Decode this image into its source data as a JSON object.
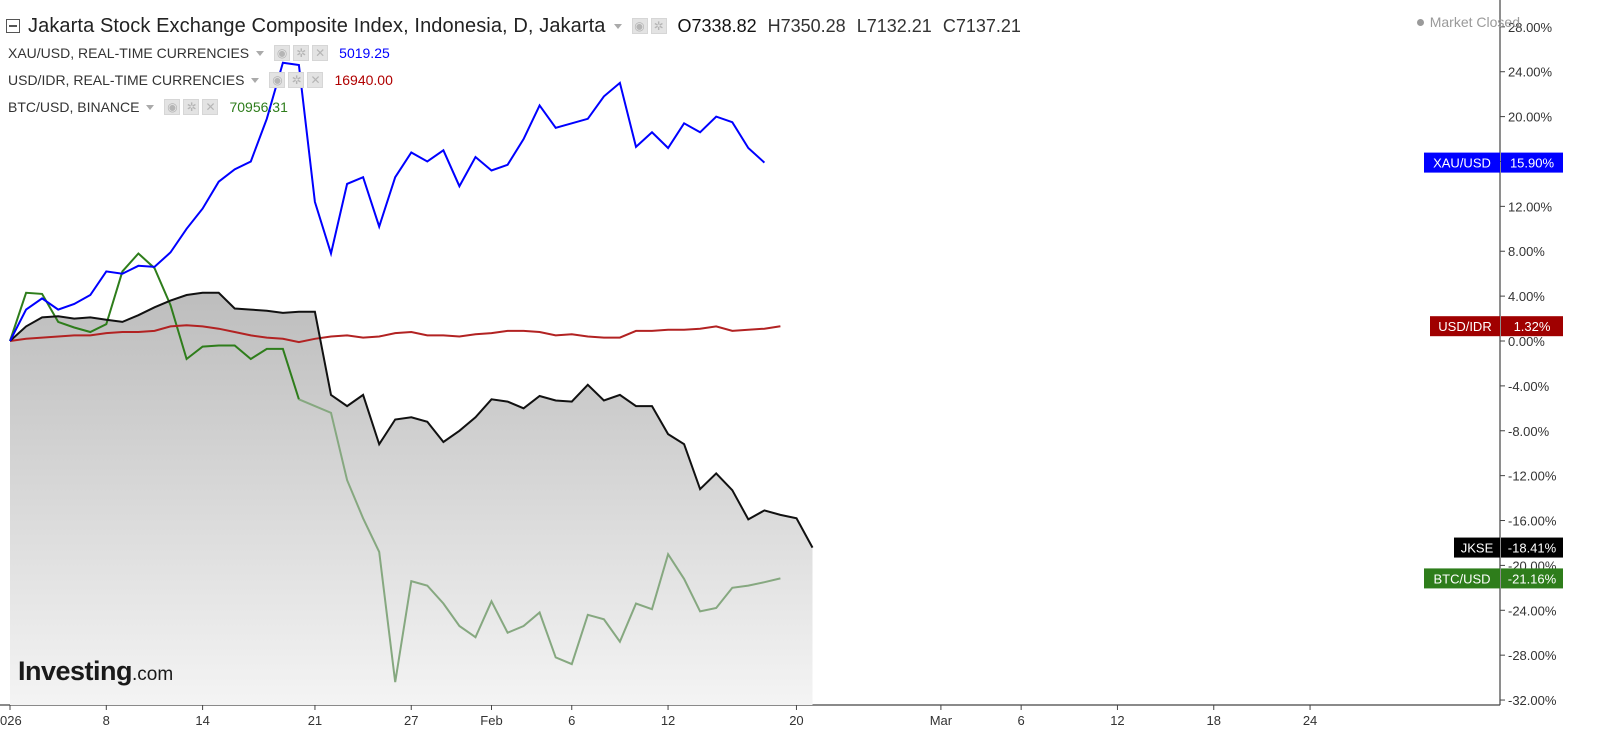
{
  "header": {
    "title": "Jakarta Stock Exchange Composite Index, Indonesia, D, Jakarta",
    "ohlc": [
      {
        "key": "O",
        "value": "7338.82"
      },
      {
        "key": "H",
        "value": "7350.28"
      },
      {
        "key": "L",
        "value": "7132.21"
      },
      {
        "key": "C",
        "value": "7137.21"
      }
    ],
    "market_status": "Market Closed"
  },
  "legend": [
    {
      "label": "XAU/USD, REAL-TIME CURRENCIES",
      "value": "5019.25",
      "color": "#0000ff"
    },
    {
      "label": "USD/IDR, REAL-TIME CURRENCIES",
      "value": "16940.00",
      "color": "#b00000"
    },
    {
      "label": "BTC/USD, BINANCE",
      "value": "70956.31",
      "color": "#2e7d1b"
    }
  ],
  "logo": {
    "brand": "Investing",
    "suffix": ".com"
  },
  "icons": [
    "collapse-icon",
    "eye-icon",
    "gear-icon",
    "close-icon",
    "chevron-down-icon"
  ],
  "chart_data": {
    "type": "line",
    "y_unit": "%",
    "ylim": [
      -34,
      30
    ],
    "y_ticks": [
      28,
      24,
      20,
      16,
      12,
      8,
      4,
      0,
      -4,
      -8,
      -12,
      -16,
      -20,
      -24,
      -28,
      -32
    ],
    "y_tick_labels": [
      "28.00%",
      "24.00%",
      "20.00%",
      "16.00%",
      "12.00%",
      "8.00%",
      "4.00%",
      "0.00%",
      "-4.00%",
      "-8.00%",
      "-12.00%",
      "-16.00%",
      "-20.00%",
      "-24.00%",
      "-28.00%",
      "-32.00%"
    ],
    "x_ticks": [
      {
        "label": "026",
        "day": 0
      },
      {
        "label": "8",
        "day": 6
      },
      {
        "label": "14",
        "day": 12
      },
      {
        "label": "21",
        "day": 19
      },
      {
        "label": "27",
        "day": 25
      },
      {
        "label": "Feb",
        "day": 30
      },
      {
        "label": "6",
        "day": 35
      },
      {
        "label": "12",
        "day": 41
      },
      {
        "label": "20",
        "day": 49
      },
      {
        "label": "Mar",
        "day": 58
      },
      {
        "label": "6",
        "day": 63
      },
      {
        "label": "12",
        "day": 69
      },
      {
        "label": "18",
        "day": 75
      },
      {
        "label": "24",
        "day": 81
      }
    ],
    "xlim": [
      0,
      90
    ],
    "grid": false,
    "series": [
      {
        "name": "JKSE",
        "color": "#111111",
        "area": true,
        "last_label": "-18.41%",
        "points": [
          [
            0,
            0
          ],
          [
            1,
            1.3
          ],
          [
            2,
            2.1
          ],
          [
            3,
            2.2
          ],
          [
            4,
            2.0
          ],
          [
            5,
            2.1
          ],
          [
            6,
            1.9
          ],
          [
            7,
            1.7
          ],
          [
            8,
            2.3
          ],
          [
            9,
            3.0
          ],
          [
            10,
            3.6
          ],
          [
            11,
            4.1
          ],
          [
            12,
            4.3
          ],
          [
            13,
            4.3
          ],
          [
            14,
            2.9
          ],
          [
            15,
            2.8
          ],
          [
            16,
            2.7
          ],
          [
            17,
            2.5
          ],
          [
            18,
            2.6
          ],
          [
            19,
            2.6
          ],
          [
            20,
            -4.8
          ],
          [
            21,
            -5.8
          ],
          [
            22,
            -4.8
          ],
          [
            23,
            -9.2
          ],
          [
            24,
            -7.0
          ],
          [
            25,
            -6.8
          ],
          [
            26,
            -7.2
          ],
          [
            27,
            -9.0
          ],
          [
            28,
            -8.0
          ],
          [
            29,
            -6.8
          ],
          [
            30,
            -5.2
          ],
          [
            31,
            -5.4
          ],
          [
            32,
            -6.0
          ],
          [
            33,
            -4.9
          ],
          [
            34,
            -5.3
          ],
          [
            35,
            -5.4
          ],
          [
            36,
            -3.9
          ],
          [
            37,
            -5.3
          ],
          [
            38,
            -4.8
          ],
          [
            39,
            -5.8
          ],
          [
            40,
            -5.8
          ],
          [
            41,
            -8.3
          ],
          [
            42,
            -9.2
          ],
          [
            43,
            -13.2
          ],
          [
            44,
            -11.8
          ],
          [
            45,
            -13.3
          ],
          [
            46,
            -15.9
          ],
          [
            47,
            -15.1
          ],
          [
            48,
            -15.5
          ],
          [
            49,
            -15.8
          ],
          [
            50,
            -18.41
          ]
        ]
      },
      {
        "name": "XAU/USD",
        "color": "#0000ff",
        "last_label": "15.90%",
        "points": [
          [
            0,
            0
          ],
          [
            1,
            2.8
          ],
          [
            2,
            3.8
          ],
          [
            3,
            2.8
          ],
          [
            4,
            3.3
          ],
          [
            5,
            4.1
          ],
          [
            6,
            6.2
          ],
          [
            7,
            6.0
          ],
          [
            8,
            6.7
          ],
          [
            9,
            6.6
          ],
          [
            10,
            7.9
          ],
          [
            11,
            10.0
          ],
          [
            12,
            11.8
          ],
          [
            13,
            14.2
          ],
          [
            14,
            15.3
          ],
          [
            15,
            16.0
          ],
          [
            16,
            19.8
          ],
          [
            17,
            24.8
          ],
          [
            18,
            24.6
          ],
          [
            19,
            12.4
          ],
          [
            20,
            7.8
          ],
          [
            21,
            14.0
          ],
          [
            22,
            14.6
          ],
          [
            23,
            10.2
          ],
          [
            24,
            14.6
          ],
          [
            25,
            16.8
          ],
          [
            26,
            16.0
          ],
          [
            27,
            17.0
          ],
          [
            28,
            13.8
          ],
          [
            29,
            16.4
          ],
          [
            30,
            15.2
          ],
          [
            31,
            15.7
          ],
          [
            32,
            18.0
          ],
          [
            33,
            21.0
          ],
          [
            34,
            19.0
          ],
          [
            35,
            19.4
          ],
          [
            36,
            19.8
          ],
          [
            37,
            21.8
          ],
          [
            38,
            23.0
          ],
          [
            39,
            17.3
          ],
          [
            40,
            18.6
          ],
          [
            41,
            17.2
          ],
          [
            42,
            19.4
          ],
          [
            43,
            18.6
          ],
          [
            44,
            20.0
          ],
          [
            45,
            19.5
          ],
          [
            46,
            17.2
          ],
          [
            47,
            15.9
          ]
        ]
      },
      {
        "name": "USD/IDR",
        "color": "#b22222",
        "last_label": "1.32%",
        "points": [
          [
            0,
            0
          ],
          [
            1,
            0.2
          ],
          [
            2,
            0.3
          ],
          [
            3,
            0.4
          ],
          [
            4,
            0.5
          ],
          [
            5,
            0.5
          ],
          [
            6,
            0.7
          ],
          [
            7,
            0.8
          ],
          [
            8,
            0.8
          ],
          [
            9,
            0.9
          ],
          [
            10,
            1.3
          ],
          [
            11,
            1.4
          ],
          [
            12,
            1.3
          ],
          [
            13,
            1.1
          ],
          [
            14,
            0.8
          ],
          [
            15,
            0.5
          ],
          [
            16,
            0.3
          ],
          [
            17,
            0.2
          ],
          [
            18,
            -0.1
          ],
          [
            19,
            0.2
          ],
          [
            20,
            0.4
          ],
          [
            21,
            0.5
          ],
          [
            22,
            0.3
          ],
          [
            23,
            0.4
          ],
          [
            24,
            0.7
          ],
          [
            25,
            0.8
          ],
          [
            26,
            0.5
          ],
          [
            27,
            0.5
          ],
          [
            28,
            0.4
          ],
          [
            29,
            0.6
          ],
          [
            30,
            0.7
          ],
          [
            31,
            0.9
          ],
          [
            32,
            0.9
          ],
          [
            33,
            0.8
          ],
          [
            34,
            0.5
          ],
          [
            35,
            0.6
          ],
          [
            36,
            0.4
          ],
          [
            37,
            0.3
          ],
          [
            38,
            0.3
          ],
          [
            39,
            0.9
          ],
          [
            40,
            0.9
          ],
          [
            41,
            1.0
          ],
          [
            42,
            1.0
          ],
          [
            43,
            1.1
          ],
          [
            44,
            1.3
          ],
          [
            45,
            0.9
          ],
          [
            46,
            1.0
          ],
          [
            47,
            1.1
          ],
          [
            48,
            1.32
          ]
        ]
      },
      {
        "name": "BTC/USD",
        "color": "#2e7d1b",
        "faded_color": "#86a880",
        "last_label": "-21.16%",
        "points": [
          [
            0,
            0
          ],
          [
            1,
            4.3
          ],
          [
            2,
            4.2
          ],
          [
            3,
            1.7
          ],
          [
            4,
            1.2
          ],
          [
            5,
            0.8
          ],
          [
            6,
            1.5
          ],
          [
            7,
            6.2
          ],
          [
            8,
            7.8
          ],
          [
            9,
            6.5
          ],
          [
            10,
            3.2
          ],
          [
            11,
            -1.6
          ],
          [
            12,
            -0.5
          ],
          [
            13,
            -0.4
          ],
          [
            14,
            -0.4
          ],
          [
            15,
            -1.6
          ],
          [
            16,
            -0.7
          ],
          [
            17,
            -0.7
          ],
          [
            18,
            -5.2
          ],
          [
            19,
            -5.8
          ],
          [
            20,
            -6.4
          ],
          [
            21,
            -12.4
          ],
          [
            22,
            -15.8
          ],
          [
            23,
            -18.8
          ],
          [
            24,
            -30.4
          ],
          [
            25,
            -21.4
          ],
          [
            26,
            -21.8
          ],
          [
            27,
            -23.4
          ],
          [
            28,
            -25.4
          ],
          [
            29,
            -26.4
          ],
          [
            30,
            -23.2
          ],
          [
            31,
            -26.0
          ],
          [
            32,
            -25.4
          ],
          [
            33,
            -24.2
          ],
          [
            34,
            -28.2
          ],
          [
            35,
            -28.8
          ],
          [
            36,
            -24.4
          ],
          [
            37,
            -24.8
          ],
          [
            38,
            -26.8
          ],
          [
            39,
            -23.4
          ],
          [
            40,
            -23.9
          ],
          [
            41,
            -19.0
          ],
          [
            42,
            -21.2
          ],
          [
            43,
            -24.1
          ],
          [
            44,
            -23.8
          ],
          [
            45,
            -22.0
          ],
          [
            46,
            -21.8
          ],
          [
            47,
            -21.5
          ],
          [
            48,
            -21.16
          ]
        ]
      }
    ]
  }
}
